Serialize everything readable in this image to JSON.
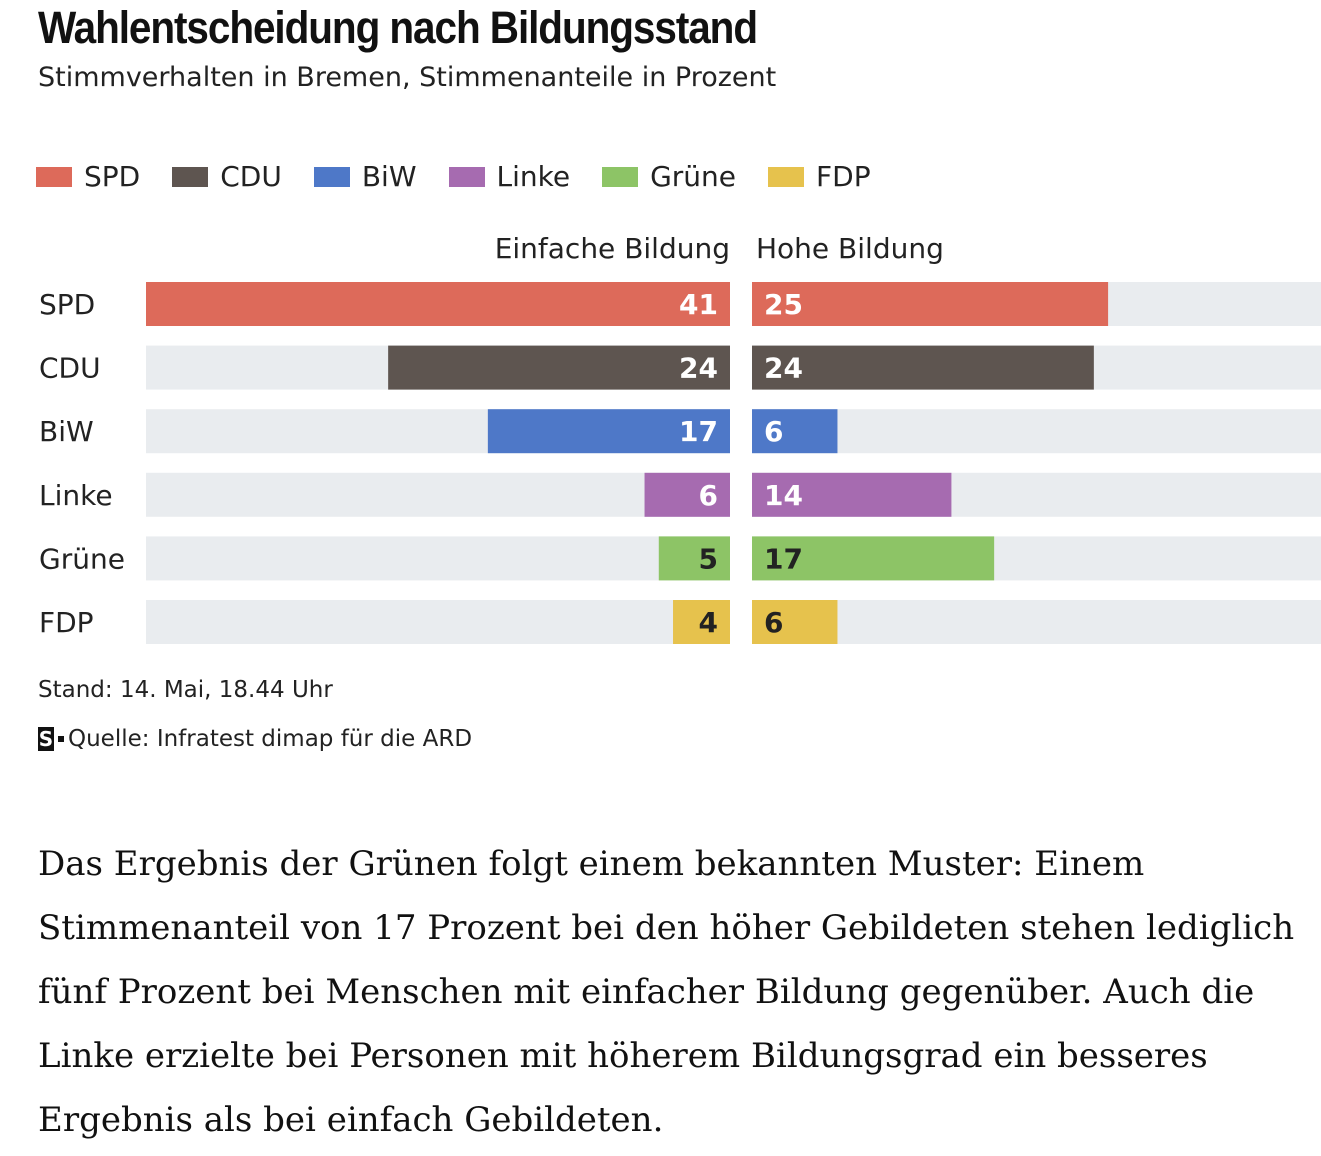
{
  "title": "Wahlentscheidung nach Bildungsstand",
  "subtitle": "Stimmverhalten in Bremen, Stimmenanteile in Prozent",
  "legend": [
    {
      "label": "SPD",
      "color": "#dd6a5a"
    },
    {
      "label": "CDU",
      "color": "#5e5550"
    },
    {
      "label": "BiW",
      "color": "#4e78c8"
    },
    {
      "label": "Linke",
      "color": "#a66bb0"
    },
    {
      "label": "Grüne",
      "color": "#8dc466"
    },
    {
      "label": "FDP",
      "color": "#e6c24d"
    }
  ],
  "chart_data": {
    "type": "bar",
    "orientation": "horizontal",
    "layout": "butterfly",
    "categories": [
      "SPD",
      "CDU",
      "BiW",
      "Linke",
      "Grüne",
      "FDP"
    ],
    "colors": [
      "#dd6a5a",
      "#5e5550",
      "#4e78c8",
      "#a66bb0",
      "#8dc466",
      "#e6c24d"
    ],
    "series": [
      {
        "name": "Einfache Bildung",
        "values": [
          41,
          24,
          17,
          6,
          5,
          4
        ]
      },
      {
        "name": "Hohe Bildung",
        "values": [
          25,
          24,
          6,
          14,
          17,
          6
        ]
      }
    ],
    "xlim": [
      0,
      41
    ],
    "track_color": "#e9ecef"
  },
  "footer": {
    "stand": "Stand: 14. Mai, 18.44 Uhr",
    "source_logo": "S",
    "source": "Quelle: Infratest dimap für die ARD"
  },
  "paragraph": "Das Ergebnis der Grünen folgt einem bekannten Muster: Einem Stimmenanteil von 17 Prozent bei den höher Gebildeten stehen lediglich fünf Prozent bei Menschen mit einfacher Bildung gegenüber. Auch die Linke erzielte bei Personen mit höherem Bildungsgrad ein besseres Ergebnis als bei einfach Gebildeten."
}
